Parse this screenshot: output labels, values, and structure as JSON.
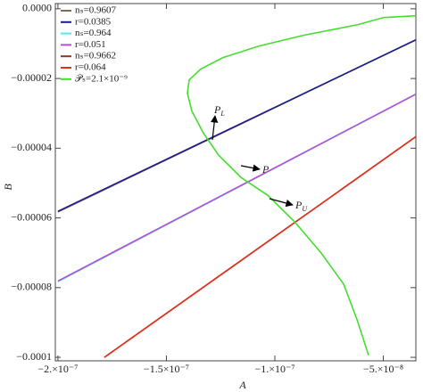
{
  "chart_data": {
    "type": "line",
    "xlabel": "A",
    "ylabel": "B",
    "xlim": [
      -2.012e-07,
      -3.5e-08
    ],
    "ylim": [
      -0.000101,
      1.5e-06
    ],
    "xticks": [
      {
        "value": -2e-07,
        "label": "−2.×10⁻⁷"
      },
      {
        "value": -1.5e-07,
        "label": "−1.5×10⁻⁷"
      },
      {
        "value": -1e-07,
        "label": "−1.×10⁻⁷"
      },
      {
        "value": -5e-08,
        "label": "−5.×10⁻⁸"
      }
    ],
    "yticks": [
      {
        "value": 0,
        "label": "0.0000"
      },
      {
        "value": -2e-05,
        "label": "−0.00002"
      },
      {
        "value": -4e-05,
        "label": "−0.00004"
      },
      {
        "value": -6e-05,
        "label": "−0.00006"
      },
      {
        "value": -8e-05,
        "label": "−0.00008"
      },
      {
        "value": -0.0001,
        "label": "−0.0001"
      }
    ],
    "series": [
      {
        "name": "nₛ=0.9607",
        "color": "#7d6a50",
        "x": [
          -2e-07,
          -3.5e-08
        ],
        "values": [
          -5.83e-05,
          -8.9e-06
        ]
      },
      {
        "name": "r=0.0385",
        "color": "#1c1c8a",
        "x": [
          -2e-07,
          -3.5e-08
        ],
        "values": [
          -5.81e-05,
          -8.9e-06
        ]
      },
      {
        "name": "nₛ=0.964",
        "color": "#55e6ee",
        "x": [
          -2e-07,
          -3.5e-08
        ],
        "values": [
          -7.83e-05,
          -2.45e-05
        ]
      },
      {
        "name": "r=0.051",
        "color": "#b24fd6",
        "x": [
          -2e-07,
          -3.5e-08
        ],
        "values": [
          -7.81e-05,
          -2.45e-05
        ]
      },
      {
        "name": "nₛ=0.9662",
        "color": "#8a3b1c",
        "x": [
          -1.786e-07,
          -3.5e-08
        ],
        "values": [
          -0.0001,
          -3.67e-05
        ]
      },
      {
        "name": "r=0.064",
        "color": "#e2301e",
        "x": [
          -1.786e-07,
          -3.5e-08
        ],
        "values": [
          -0.0001,
          -3.67e-05
        ]
      },
      {
        "name": "𝒫ₛ=2.1×10⁻⁹",
        "color": "#46dc32",
        "x": [
          -3.5e-08,
          -4.98e-08,
          -6.21e-08,
          -8.68e-08,
          -1.074e-07,
          -1.239e-07,
          -1.342e-07,
          -1.395e-07,
          -1.403e-07,
          -1.383e-07,
          -1.329e-07,
          -1.259e-07,
          -1.156e-07,
          -1.033e-07,
          -9.09e-08,
          -7.86e-08,
          -6.83e-08,
          -6.21e-08,
          -5.68e-08
        ],
        "values": [
          -2e-06,
          -2.5e-06,
          -4.6e-06,
          -7.6e-06,
          -1.07e-05,
          -1.4e-05,
          -1.73e-05,
          -2.04e-05,
          -2.42e-05,
          -2.93e-05,
          -3.57e-05,
          -4.2e-05,
          -4.84e-05,
          -5.35e-05,
          -6.11e-05,
          -7.01e-05,
          -7.9e-05,
          -8.92e-05,
          -9.94e-05
        ]
      }
    ],
    "annotations": [
      {
        "text": "P",
        "sub": "L"
      },
      {
        "text": "P"
      },
      {
        "text": "P",
        "sub": "U"
      }
    ]
  }
}
